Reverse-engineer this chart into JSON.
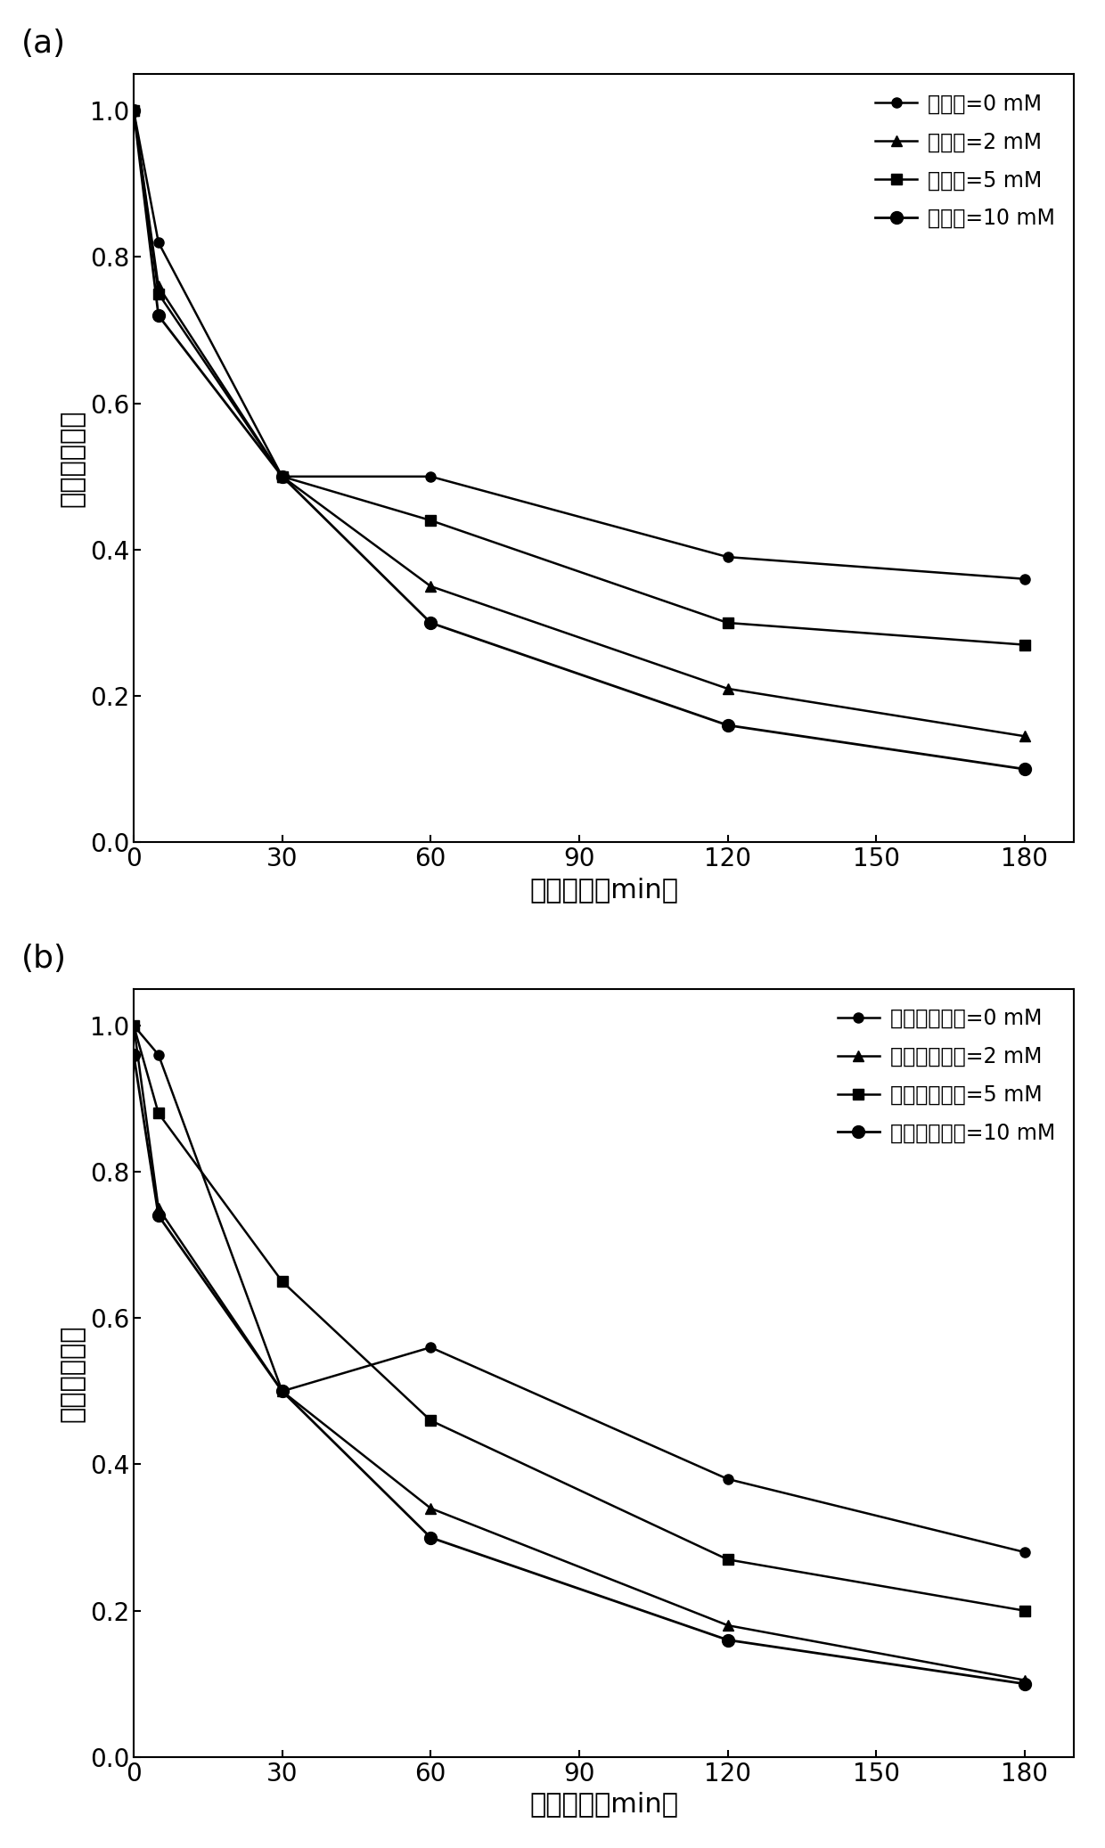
{
  "x": [
    0,
    5,
    30,
    60,
    120,
    180
  ],
  "panel_a": {
    "label": "(a)",
    "series": [
      {
        "label": "氯离子=0 mM",
        "marker": "o",
        "markersize": 8,
        "y": [
          1.0,
          0.82,
          0.5,
          0.5,
          0.39,
          0.36
        ],
        "zorder": 4
      },
      {
        "label": "氯离子=2 mM",
        "marker": "^",
        "markersize": 8,
        "y": [
          1.0,
          0.76,
          0.5,
          0.35,
          0.21,
          0.145
        ],
        "zorder": 3
      },
      {
        "label": "氯离子=5 mM",
        "marker": "s",
        "markersize": 8,
        "y": [
          1.0,
          0.75,
          0.5,
          0.44,
          0.3,
          0.27
        ],
        "zorder": 3
      },
      {
        "label": "氯离子=10 mM",
        "marker": "o",
        "markersize": 10,
        "y": [
          1.0,
          0.72,
          0.5,
          0.3,
          0.16,
          0.1
        ],
        "zorder": 2
      }
    ],
    "ylabel": "剩余泛影酸钔",
    "xlabel": "反应时间（min）",
    "ylim": [
      0,
      1.05
    ],
    "yticks": [
      0,
      0.2,
      0.4,
      0.6,
      0.8,
      1.0
    ],
    "xticks": [
      0,
      30,
      60,
      90,
      120,
      150,
      180
    ]
  },
  "panel_b": {
    "label": "(b)",
    "series": [
      {
        "label": "碳酸氢根离子=0 mM",
        "marker": "o",
        "markersize": 8,
        "y": [
          1.0,
          0.96,
          0.5,
          0.56,
          0.38,
          0.28
        ],
        "zorder": 4
      },
      {
        "label": "碳酸氢根离子=2 mM",
        "marker": "^",
        "markersize": 8,
        "y": [
          1.0,
          0.75,
          0.5,
          0.34,
          0.18,
          0.105
        ],
        "zorder": 3
      },
      {
        "label": "碳酸氢根离子=5 mM",
        "marker": "s",
        "markersize": 8,
        "y": [
          1.0,
          0.88,
          0.65,
          0.46,
          0.27,
          0.2
        ],
        "zorder": 3
      },
      {
        "label": "碳酸氢根离子=10 mM",
        "marker": "o",
        "markersize": 10,
        "y": [
          0.96,
          0.74,
          0.5,
          0.3,
          0.16,
          0.1
        ],
        "zorder": 2
      }
    ],
    "ylabel": "剩余泛影酸钔",
    "xlabel": "反应时间（min）",
    "ylim": [
      0,
      1.05
    ],
    "yticks": [
      0,
      0.2,
      0.4,
      0.6,
      0.8,
      1.0
    ],
    "xticks": [
      0,
      30,
      60,
      90,
      120,
      150,
      180
    ]
  },
  "line_color": "#000000",
  "background_color": "#ffffff",
  "label_fontsize": 26,
  "tick_fontsize": 20,
  "axis_label_fontsize": 22,
  "legend_fontsize": 17
}
